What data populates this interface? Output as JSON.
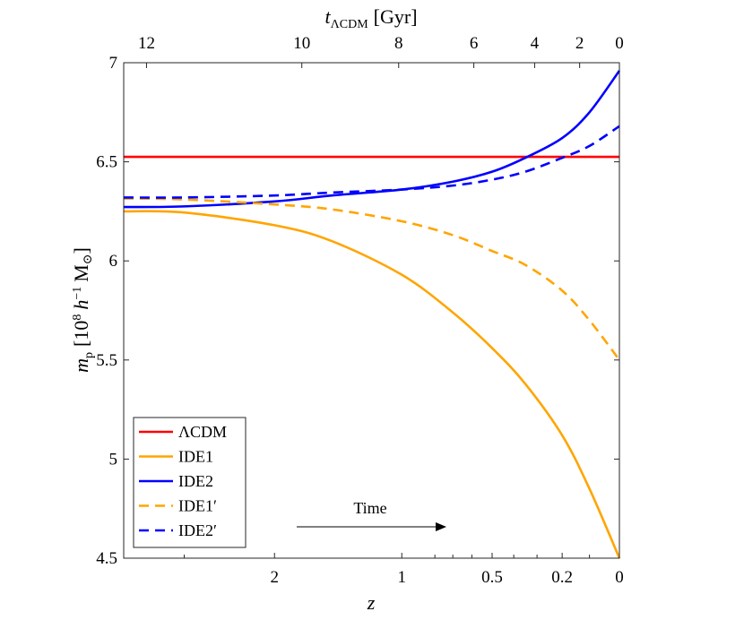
{
  "chart_data": {
    "type": "line",
    "x_scale": "log(1+z), reversed",
    "xlim": [
      3.85,
      0
    ],
    "ylim": [
      4.5,
      7
    ],
    "xlabel": "z",
    "ylabel": "m_p [10^8 h^-1 M_sun]",
    "ylabel_parts": {
      "sym": "m",
      "sub": "p",
      "open": "[10",
      "exp1": "8",
      "h": "h",
      "exp2": "−1",
      "unit": "M",
      "sun": "⊙",
      "close": "]"
    },
    "x2label": "t_ΛCDM [Gyr]",
    "x2label_parts": {
      "sym": "t",
      "sub": "ΛCDM",
      "unit": "[Gyr]"
    },
    "x_ticks": [
      {
        "value": 2,
        "label": "2"
      },
      {
        "value": 1,
        "label": "1"
      },
      {
        "value": 0.5,
        "label": "0.5"
      },
      {
        "value": 0.2,
        "label": "0.2"
      },
      {
        "value": 0,
        "label": "0"
      }
    ],
    "x_minor_ticks": [
      3,
      0.8,
      0.7,
      0.6,
      0.4,
      0.3,
      0.1
    ],
    "y_ticks": [
      {
        "value": 4.5,
        "label": "4.5"
      },
      {
        "value": 5,
        "label": "5"
      },
      {
        "value": 5.5,
        "label": "5.5"
      },
      {
        "value": 6,
        "label": "6"
      },
      {
        "value": 6.5,
        "label": "6.5"
      },
      {
        "value": 7,
        "label": "7"
      }
    ],
    "x2_ticks": [
      {
        "value": 12,
        "label": "12",
        "z": 3.51
      },
      {
        "value": 10,
        "label": "10",
        "z": 1.75
      },
      {
        "value": 8,
        "label": "8",
        "z": 1.02
      },
      {
        "value": 6,
        "label": "6",
        "z": 0.59
      },
      {
        "value": 4,
        "label": "4",
        "z": 0.31
      },
      {
        "value": 2,
        "label": "2",
        "z": 0.135
      },
      {
        "value": 0,
        "label": "0",
        "z": 0
      }
    ],
    "series": [
      {
        "name": "ΛCDM",
        "color": "#ff0000",
        "dash": "solid",
        "x": [
          3.85,
          0
        ],
        "y": [
          6.525,
          6.525
        ]
      },
      {
        "name": "IDE1",
        "color": "#ffa500",
        "dash": "solid",
        "x": [
          3.85,
          3.0,
          2.0,
          1.5,
          1.0,
          0.7,
          0.5,
          0.35,
          0.2,
          0.1,
          0.0
        ],
        "y": [
          6.25,
          6.244,
          6.18,
          6.1,
          5.93,
          5.74,
          5.56,
          5.38,
          5.12,
          4.85,
          4.5
        ]
      },
      {
        "name": "IDE2",
        "color": "#0000ff",
        "dash": "solid",
        "x": [
          3.85,
          3.0,
          2.0,
          1.5,
          1.0,
          0.7,
          0.5,
          0.35,
          0.2,
          0.1,
          0.0
        ],
        "y": [
          6.272,
          6.275,
          6.3,
          6.33,
          6.36,
          6.4,
          6.45,
          6.52,
          6.62,
          6.75,
          6.96
        ]
      },
      {
        "name": "IDE1′",
        "color": "#ffa500",
        "dash": "dashed",
        "x": [
          3.85,
          3.0,
          2.0,
          1.5,
          1.0,
          0.7,
          0.5,
          0.35,
          0.2,
          0.1,
          0.0
        ],
        "y": [
          6.315,
          6.31,
          6.285,
          6.26,
          6.2,
          6.13,
          6.05,
          5.98,
          5.85,
          5.7,
          5.5
        ]
      },
      {
        "name": "IDE2′",
        "color": "#0000ff",
        "dash": "dashed",
        "x": [
          3.85,
          3.0,
          2.0,
          1.5,
          1.0,
          0.7,
          0.5,
          0.35,
          0.2,
          0.1,
          0.0
        ],
        "y": [
          6.32,
          6.32,
          6.33,
          6.345,
          6.36,
          6.38,
          6.41,
          6.45,
          6.52,
          6.58,
          6.68
        ]
      }
    ],
    "legend_placement": "bottom-left",
    "annotation": {
      "text": "Time",
      "arrow": "right"
    }
  }
}
